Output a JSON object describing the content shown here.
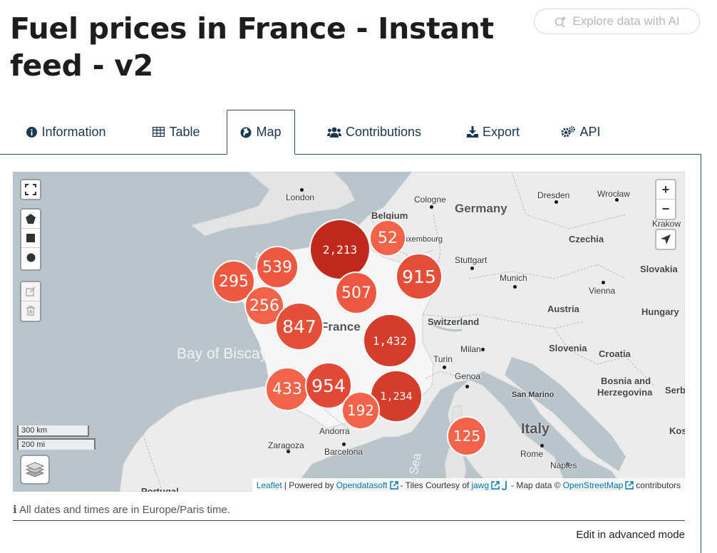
{
  "page": {
    "title": "Fuel prices in France - Instant feed - v2",
    "ai_button": "Explore data with AI"
  },
  "tabs": [
    {
      "label": "Information",
      "icon": "info-circle-icon"
    },
    {
      "label": "Table",
      "icon": "table-icon"
    },
    {
      "label": "Map",
      "icon": "globe-icon",
      "active": true
    },
    {
      "label": "Contributions",
      "icon": "users-icon"
    },
    {
      "label": "Export",
      "icon": "download-icon"
    },
    {
      "label": "API",
      "icon": "cogs-icon"
    }
  ],
  "map": {
    "clusters": [
      {
        "count": "2,213",
        "color": "#bf2a1d"
      },
      {
        "count": "52",
        "color": "#f2634a"
      },
      {
        "count": "539",
        "color": "#ee5840"
      },
      {
        "count": "295",
        "color": "#ee5840"
      },
      {
        "count": "915",
        "color": "#e54f3a"
      },
      {
        "count": "507",
        "color": "#ee5840"
      },
      {
        "count": "256",
        "color": "#f2634a"
      },
      {
        "count": "847",
        "color": "#e54f3a"
      },
      {
        "count": "1,432",
        "color": "#d53d2b"
      },
      {
        "count": "433",
        "color": "#f2634a"
      },
      {
        "count": "954",
        "color": "#e04935"
      },
      {
        "count": "1,234",
        "color": "#d53d2b"
      },
      {
        "count": "192",
        "color": "#f2634a"
      },
      {
        "count": "125",
        "color": "#f2634a"
      }
    ],
    "countries": [
      "Belgium",
      "Germany",
      "Czechia",
      "Slovakia",
      "Austria",
      "Hungary",
      "Switzerland",
      "Slovenia",
      "Croatia",
      "Bosnia and",
      "Herzegovina",
      "Serb",
      "Italy",
      "San Marino",
      "Kos",
      "France",
      "Portugal"
    ],
    "cities": [
      "London",
      "Cologne",
      "Dresden",
      "Wrocław",
      "Krakow",
      "Stuttgart",
      "Munich",
      "Vienna",
      "Milan",
      "Turin",
      "Genoa",
      "Andorra",
      "Zaragoza",
      "Barcelona",
      "Rome",
      "Naples",
      "uxembourg",
      "Je"
    ],
    "seas": [
      "Bay of Biscay",
      "Sea"
    ],
    "scale": {
      "km": "300 km",
      "mi": "200 mi"
    },
    "attribution": {
      "leaflet": "Leaflet",
      "powered": "| Powered by",
      "ods": "Opendatasoft",
      "tiles": "- Tiles Courtesy of",
      "jawg": "jawg",
      "mapdata": "- Map data ©",
      "osm": "OpenStreetMap",
      "contributors": "contributors"
    },
    "zoom_in": "+",
    "zoom_out": "−"
  },
  "footer": {
    "timezone_note": "All dates and times are in Europe/Paris time.",
    "advanced_link": "Edit in advanced mode"
  }
}
